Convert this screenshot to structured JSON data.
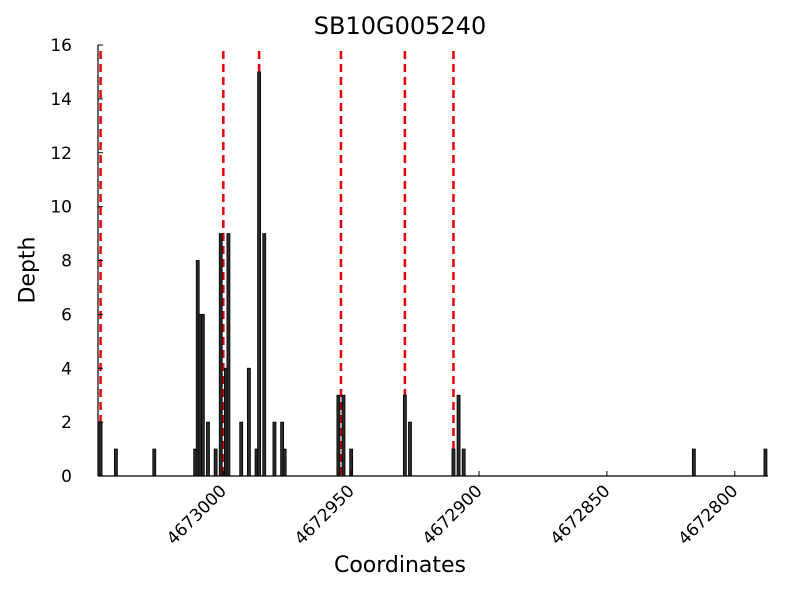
{
  "chart_data": {
    "type": "bar",
    "title": "SB10G005240",
    "xlabel": "Coordinates",
    "ylabel": "Depth",
    "x_reversed": true,
    "xlim": [
      4673049,
      4672787
    ],
    "ylim": [
      0,
      16
    ],
    "y_ticks": [
      0,
      2,
      4,
      6,
      8,
      10,
      12,
      14,
      16
    ],
    "x_ticks": [
      4673000,
      4672950,
      4672900,
      4672850,
      4672800
    ],
    "grid": false,
    "colors": {
      "bar_fill": "#2b2b2b",
      "bar_stroke": "#000000",
      "marker_line": "#e8000b"
    },
    "bars": [
      {
        "x": 4673048,
        "depth": 2
      },
      {
        "x": 4673042,
        "depth": 1
      },
      {
        "x": 4673027,
        "depth": 1
      },
      {
        "x": 4673011,
        "depth": 1
      },
      {
        "x": 4673010,
        "depth": 8
      },
      {
        "x": 4673009,
        "depth": 6
      },
      {
        "x": 4673008,
        "depth": 6
      },
      {
        "x": 4673006,
        "depth": 2
      },
      {
        "x": 4673003,
        "depth": 1
      },
      {
        "x": 4673001,
        "depth": 9
      },
      {
        "x": 4672999,
        "depth": 4
      },
      {
        "x": 4672998,
        "depth": 9
      },
      {
        "x": 4672993,
        "depth": 2
      },
      {
        "x": 4672990,
        "depth": 4
      },
      {
        "x": 4672987,
        "depth": 1
      },
      {
        "x": 4672986,
        "depth": 15
      },
      {
        "x": 4672984,
        "depth": 9
      },
      {
        "x": 4672980,
        "depth": 2
      },
      {
        "x": 4672977,
        "depth": 2
      },
      {
        "x": 4672976,
        "depth": 1
      },
      {
        "x": 4672955,
        "depth": 3
      },
      {
        "x": 4672953,
        "depth": 3
      },
      {
        "x": 4672950,
        "depth": 1
      },
      {
        "x": 4672929,
        "depth": 3
      },
      {
        "x": 4672927,
        "depth": 2
      },
      {
        "x": 4672910,
        "depth": 1
      },
      {
        "x": 4672908,
        "depth": 3
      },
      {
        "x": 4672906,
        "depth": 1
      },
      {
        "x": 4672816,
        "depth": 1
      },
      {
        "x": 4672788,
        "depth": 1
      }
    ],
    "marker_lines_x": [
      4673048,
      4673000,
      4672986,
      4672954,
      4672929,
      4672910
    ]
  }
}
